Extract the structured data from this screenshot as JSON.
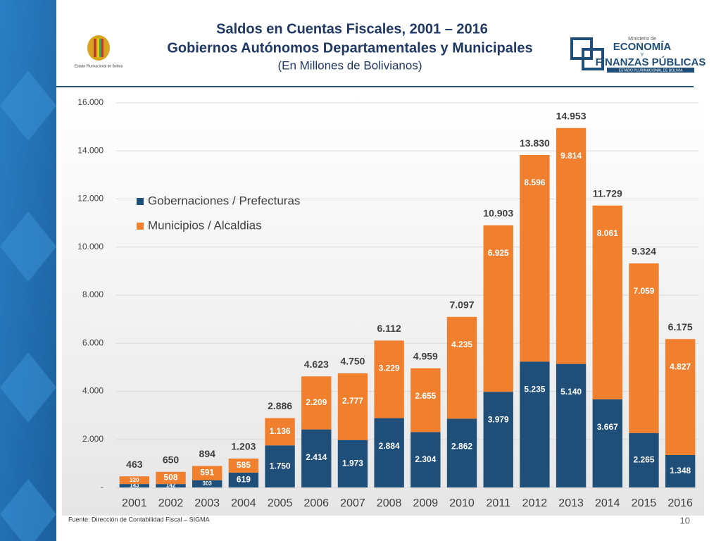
{
  "header": {
    "title": "Saldos en Cuentas Fiscales, 2001 – 2016",
    "subtitle": "Gobiernos Autónomos Departamentales y Municipales",
    "unit": "(En Millones de Bolivianos)",
    "left_logo_text": "Estado Plurinacional de Bolivia",
    "ministry_small": "Ministerio de",
    "ministry_line1": "ECONOMÍA",
    "ministry_y": "Y",
    "ministry_line2": "FINANZAS PÚBLICAS",
    "ministry_tag": "ESTADO PLURINACIONAL DE BOLIVIA"
  },
  "chart_data": {
    "type": "stacked_bar",
    "categories": [
      "2001",
      "2002",
      "2003",
      "2004",
      "2005",
      "2006",
      "2007",
      "2008",
      "2009",
      "2010",
      "2011",
      "2012",
      "2013",
      "2014",
      "2015",
      "2016"
    ],
    "series": [
      {
        "name": "Gobernaciones / Prefecturas",
        "color": "#1f4e79",
        "values": [
          143,
          142,
          303,
          619,
          1750,
          2414,
          1973,
          2884,
          2304,
          2862,
          3979,
          5235,
          5140,
          3667,
          2265,
          1348
        ],
        "value_labels": [
          "143",
          "142",
          "303",
          "619",
          "1.750",
          "2.414",
          "1.973",
          "2.884",
          "2.304",
          "2.862",
          "3.979",
          "5.235",
          "5.140",
          "3.667",
          "2.265",
          "1.348"
        ]
      },
      {
        "name": "Municipios / Alcaldias",
        "color": "#f07f2e",
        "values": [
          320,
          508,
          591,
          585,
          1136,
          2209,
          2777,
          3229,
          2655,
          4235,
          6925,
          8596,
          9814,
          8061,
          7059,
          4827
        ],
        "value_labels": [
          "320",
          "508",
          "591",
          "585",
          "1.136",
          "2.209",
          "2.777",
          "3.229",
          "2.655",
          "4.235",
          "6.925",
          "8.596",
          "9.814",
          "8.061",
          "7.059",
          "4.827"
        ]
      }
    ],
    "totals": {
      "values": [
        463,
        650,
        894,
        1203,
        2886,
        4623,
        4750,
        6112,
        4959,
        7097,
        10903,
        13830,
        14953,
        11729,
        9324,
        6175
      ],
      "value_labels": [
        "463",
        "650",
        "894",
        "1.203",
        "2.886",
        "4.623",
        "4.750",
        "6.112",
        "4.959",
        "7.097",
        "10.903",
        "13.830",
        "14.953",
        "11.729",
        "9.324",
        "6.175"
      ]
    },
    "ylim": [
      0,
      16000
    ],
    "yticks": [
      {
        "value": 0,
        "label": "-"
      },
      {
        "value": 2000,
        "label": "2.000"
      },
      {
        "value": 4000,
        "label": "4.000"
      },
      {
        "value": 6000,
        "label": "6.000"
      },
      {
        "value": 8000,
        "label": "8.000"
      },
      {
        "value": 10000,
        "label": "10.000"
      },
      {
        "value": 12000,
        "label": "12.000"
      },
      {
        "value": 14000,
        "label": "14.000"
      },
      {
        "value": 16000,
        "label": "16.000"
      }
    ],
    "grid": true,
    "legend": "upper left"
  },
  "footer": {
    "source": "Fuente: Dirección de Contabilidad Fiscal – SIGMA",
    "page": "10"
  }
}
